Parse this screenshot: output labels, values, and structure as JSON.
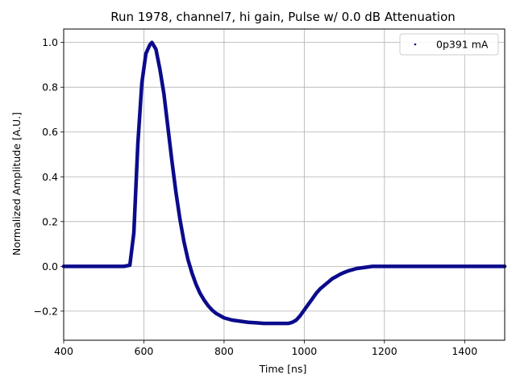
{
  "chart_data": {
    "type": "scatter",
    "title": "Run 1978, channel7, hi gain, Pulse w/ 0.0 dB Attenuation",
    "xlabel": "Time [ns]",
    "ylabel": "Normalized Amplitude [A.U.]",
    "xlim": [
      400,
      1500
    ],
    "ylim": [
      -0.33,
      1.06
    ],
    "x_ticks": [
      400,
      600,
      800,
      1000,
      1200,
      1400
    ],
    "x_tick_labels": [
      "400",
      "600",
      "800",
      "1000",
      "1200",
      "1400"
    ],
    "y_ticks": [
      -0.2,
      0.0,
      0.2,
      0.4,
      0.6,
      0.8,
      1.0
    ],
    "y_tick_labels": [
      "−0.2",
      "0.0",
      "0.2",
      "0.4",
      "0.6",
      "0.8",
      "1.0"
    ],
    "grid": true,
    "legend_position": "top-right",
    "color": "#0b0b8c",
    "series": [
      {
        "name": "0p391 mA",
        "x": [
          400,
          450,
          500,
          550,
          565,
          575,
          585,
          595,
          605,
          615,
          620,
          630,
          640,
          650,
          660,
          670,
          680,
          690,
          700,
          710,
          720,
          730,
          740,
          750,
          760,
          770,
          780,
          800,
          820,
          840,
          860,
          880,
          900,
          920,
          940,
          960,
          970,
          980,
          990,
          1000,
          1010,
          1020,
          1030,
          1040,
          1050,
          1060,
          1070,
          1080,
          1090,
          1100,
          1110,
          1120,
          1130,
          1150,
          1170,
          1200,
          1250,
          1300,
          1350,
          1400,
          1450,
          1500
        ],
        "y": [
          0.0,
          0.0,
          0.0,
          0.0,
          0.005,
          0.15,
          0.55,
          0.82,
          0.95,
          0.99,
          1.0,
          0.97,
          0.88,
          0.77,
          0.62,
          0.47,
          0.33,
          0.21,
          0.11,
          0.03,
          -0.03,
          -0.08,
          -0.12,
          -0.15,
          -0.175,
          -0.195,
          -0.21,
          -0.23,
          -0.24,
          -0.245,
          -0.25,
          -0.252,
          -0.255,
          -0.255,
          -0.255,
          -0.255,
          -0.25,
          -0.24,
          -0.22,
          -0.195,
          -0.17,
          -0.145,
          -0.12,
          -0.1,
          -0.085,
          -0.07,
          -0.055,
          -0.045,
          -0.035,
          -0.027,
          -0.02,
          -0.015,
          -0.01,
          -0.005,
          0.0,
          0.0,
          0.0,
          0.0,
          0.0,
          0.0,
          0.0,
          0.0
        ]
      }
    ]
  }
}
